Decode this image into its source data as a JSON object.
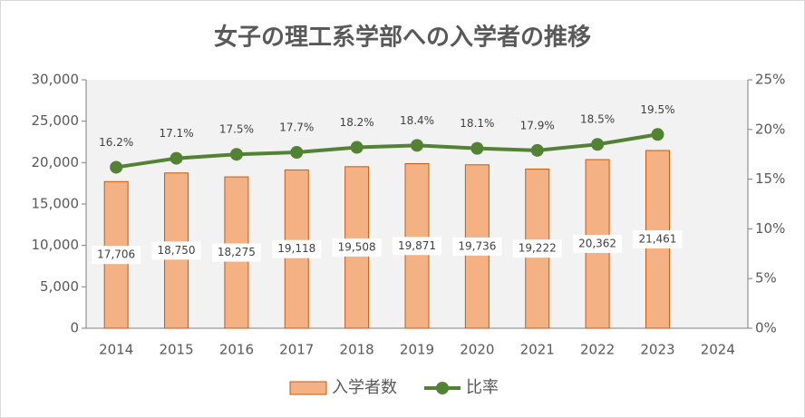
{
  "chart_data": {
    "type": "combo",
    "title": "女子の理工系学部への入学者の推移",
    "categories": [
      "2014",
      "2015",
      "2016",
      "2017",
      "2018",
      "2019",
      "2020",
      "2021",
      "2022",
      "2023",
      "2024"
    ],
    "series": [
      {
        "name": "入学者数",
        "type": "bar",
        "color": "#f4b183",
        "edge_color": "#c55a11",
        "values": [
          17706,
          18750,
          18275,
          19118,
          19508,
          19871,
          19736,
          19222,
          20362,
          21461,
          null
        ],
        "value_labels": [
          "17,706",
          "18,750",
          "18,275",
          "19,118",
          "19,508",
          "19,871",
          "19,736",
          "19,222",
          "20,362",
          "21,461",
          null
        ]
      },
      {
        "name": "比率",
        "type": "line",
        "axis": "y2",
        "color": "#548235",
        "values": [
          16.2,
          17.1,
          17.5,
          17.7,
          18.2,
          18.4,
          18.1,
          17.9,
          18.5,
          19.5,
          null
        ],
        "value_labels": [
          "16.2%",
          "17.1%",
          "17.5%",
          "17.7%",
          "18.2%",
          "18.4%",
          "18.1%",
          "17.9%",
          "18.5%",
          "19.5%",
          null
        ]
      }
    ],
    "ylim": [
      0,
      30000
    ],
    "yticks": [
      0,
      {
        "value": 5000,
        "label": "5,000"
      },
      {
        "value": 10000,
        "label": "10,000"
      },
      {
        "value": 15000,
        "label": "15,000"
      },
      {
        "value": 20000,
        "label": "20,000"
      },
      {
        "value": 25000,
        "label": "25,000"
      },
      {
        "value": 30000,
        "label": "30,000"
      }
    ],
    "y2lim": [
      0,
      25
    ],
    "y2ticks": [
      {
        "value": 0,
        "label": "0%"
      },
      {
        "value": 5,
        "label": "5%"
      },
      {
        "value": 10,
        "label": "10%"
      },
      {
        "value": 15,
        "label": "15%"
      },
      {
        "value": 20,
        "label": "20%"
      },
      {
        "value": 25,
        "label": "25%"
      }
    ],
    "legend": "bottom"
  }
}
